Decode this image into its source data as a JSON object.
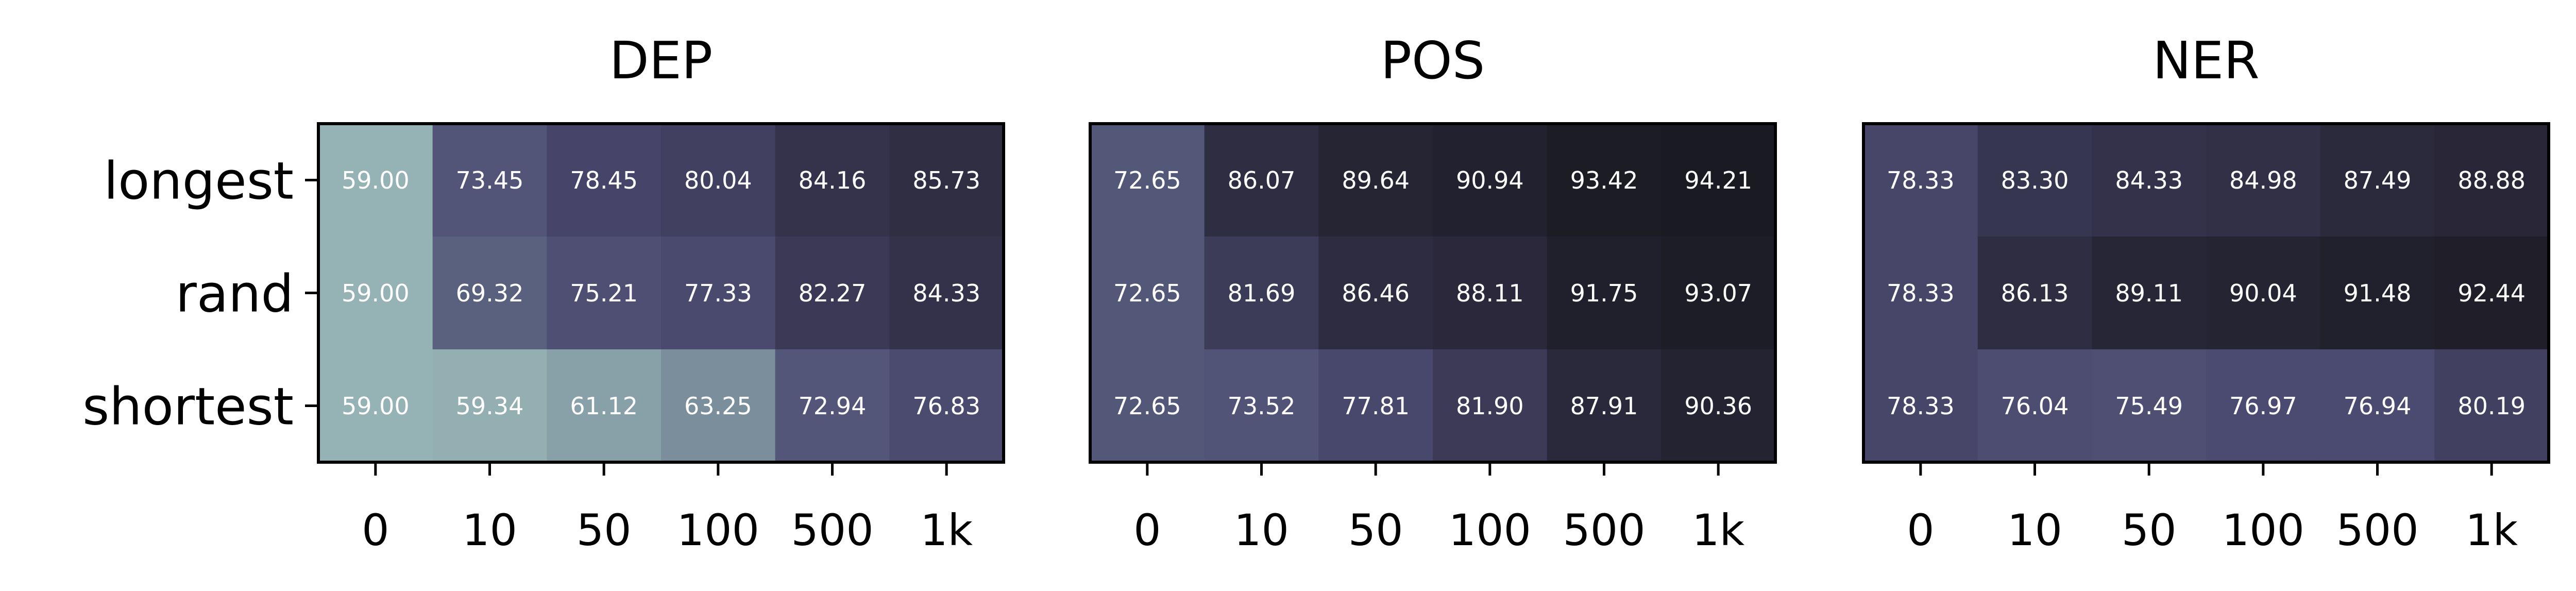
{
  "chart_data": [
    {
      "type": "heatmap",
      "title": "DEP",
      "x_categories": [
        "0",
        "10",
        "50",
        "100",
        "500",
        "1k"
      ],
      "y_categories": [
        "longest",
        "rand",
        "shortest"
      ],
      "values": [
        [
          "59.00",
          "73.45",
          "78.45",
          "80.04",
          "84.16",
          "85.73"
        ],
        [
          "59.00",
          "69.32",
          "75.21",
          "77.33",
          "82.27",
          "84.33"
        ],
        [
          "59.00",
          "59.34",
          "61.12",
          "63.25",
          "72.94",
          "76.83"
        ]
      ]
    },
    {
      "type": "heatmap",
      "title": "POS",
      "x_categories": [
        "0",
        "10",
        "50",
        "100",
        "500",
        "1k"
      ],
      "y_categories": [
        "longest",
        "rand",
        "shortest"
      ],
      "values": [
        [
          "72.65",
          "86.07",
          "89.64",
          "90.94",
          "93.42",
          "94.21"
        ],
        [
          "72.65",
          "81.69",
          "86.46",
          "88.11",
          "91.75",
          "93.07"
        ],
        [
          "72.65",
          "73.52",
          "77.81",
          "81.90",
          "87.91",
          "90.36"
        ]
      ]
    },
    {
      "type": "heatmap",
      "title": "NER",
      "x_categories": [
        "0",
        "10",
        "50",
        "100",
        "500",
        "1k"
      ],
      "y_categories": [
        "longest",
        "rand",
        "shortest"
      ],
      "values": [
        [
          "78.33",
          "83.30",
          "84.33",
          "84.98",
          "87.49",
          "88.88"
        ],
        [
          "78.33",
          "86.13",
          "89.11",
          "90.04",
          "91.48",
          "92.44"
        ],
        [
          "78.33",
          "76.04",
          "75.49",
          "76.97",
          "76.94",
          "80.19"
        ]
      ]
    }
  ],
  "colormap": [
    "#95b2b4",
    "#5c6581",
    "#4b4a70",
    "#2f2d42",
    "#18181f"
  ],
  "color_range": [
    59,
    95
  ]
}
